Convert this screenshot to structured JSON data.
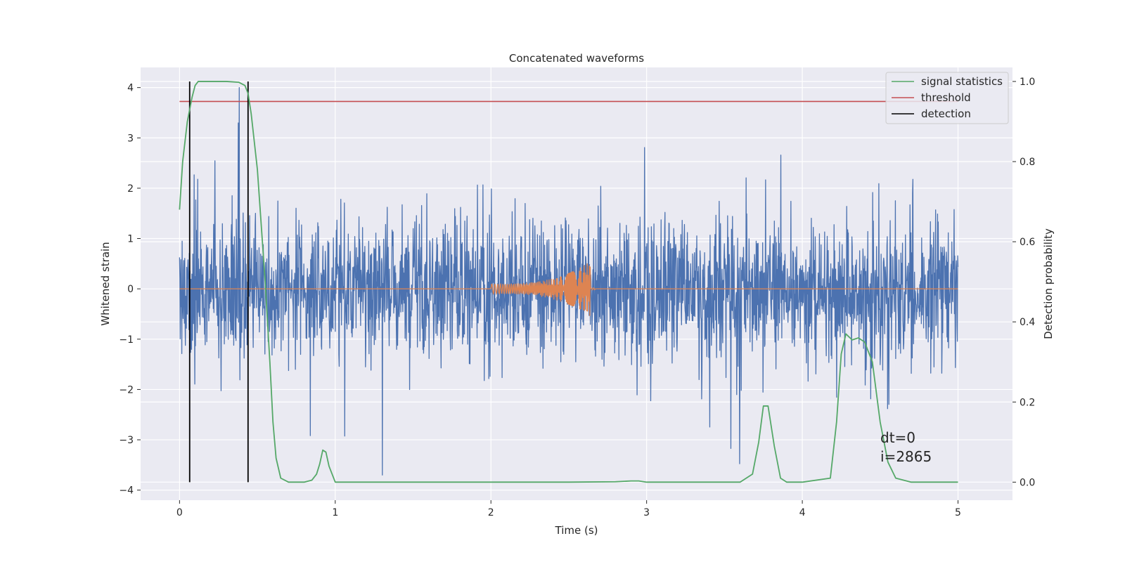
{
  "chart_data": {
    "type": "line",
    "title": "Concatenated waveforms",
    "xlabel": "Time (s)",
    "ylabel_left": "Whitened strain",
    "ylabel_right": "Detection probability",
    "xlim": [
      -0.25,
      5.35
    ],
    "ylim_left": [
      -4.2,
      4.4
    ],
    "ylim_right": [
      -0.045,
      1.035
    ],
    "x_ticks": [
      "0",
      "1",
      "2",
      "3",
      "4",
      "5"
    ],
    "y_left_ticks": [
      "−4",
      "−3",
      "−2",
      "−1",
      "0",
      "1",
      "2",
      "3",
      "4"
    ],
    "y_right_ticks": [
      "0.0",
      "0.2",
      "0.4",
      "0.6",
      "0.8",
      "1.0"
    ],
    "grid": true,
    "legend_placement": "upper right",
    "legend": [
      "signal statistics",
      "threshold",
      "detection"
    ],
    "annotations": [
      "dt=0",
      "i=2865"
    ],
    "series": [
      {
        "name": "",
        "kind": "noise",
        "axis": "left",
        "x_range": [
          0,
          5
        ],
        "typical_amplitude": 0.7,
        "max": 4.0,
        "min": -3.7,
        "color": "#4c72b0"
      },
      {
        "name": "",
        "kind": "chirp",
        "axis": "left",
        "x_range": [
          0,
          5
        ],
        "chirp_start": 2.0,
        "chirp_end": 2.64,
        "amplitude_start": 0.1,
        "amplitude_peak": 0.55,
        "color": "#dd8452"
      },
      {
        "name": "signal statistics",
        "axis": "right",
        "color": "#55a868",
        "x": [
          0.0,
          0.02,
          0.05,
          0.08,
          0.1,
          0.12,
          0.15,
          0.2,
          0.3,
          0.38,
          0.42,
          0.44,
          0.46,
          0.5,
          0.55,
          0.58,
          0.6,
          0.62,
          0.65,
          0.7,
          0.8,
          0.85,
          0.88,
          0.9,
          0.92,
          0.94,
          0.96,
          1.0,
          1.2,
          2.0,
          2.5,
          2.8,
          2.9,
          2.95,
          3.0,
          3.5,
          3.6,
          3.68,
          3.72,
          3.75,
          3.78,
          3.82,
          3.86,
          3.9,
          4.0,
          4.18,
          4.22,
          4.25,
          4.28,
          4.32,
          4.36,
          4.4,
          4.45,
          4.5,
          4.55,
          4.6,
          4.7,
          5.0
        ],
        "y": [
          0.68,
          0.8,
          0.9,
          0.96,
          0.99,
          1.0,
          1.0,
          1.0,
          1.0,
          0.998,
          0.99,
          0.97,
          0.92,
          0.78,
          0.5,
          0.3,
          0.15,
          0.06,
          0.01,
          0.0,
          0.0,
          0.005,
          0.02,
          0.045,
          0.08,
          0.075,
          0.04,
          0.0,
          0.0,
          0.0,
          0.0,
          0.001,
          0.003,
          0.003,
          0.0,
          0.0,
          0.0,
          0.02,
          0.1,
          0.19,
          0.19,
          0.09,
          0.01,
          0.0,
          0.0,
          0.01,
          0.15,
          0.32,
          0.37,
          0.355,
          0.36,
          0.35,
          0.3,
          0.15,
          0.05,
          0.01,
          0.0,
          0.0
        ]
      },
      {
        "name": "threshold",
        "axis": "right",
        "color": "#c44e52",
        "x": [
          0,
          5
        ],
        "y": [
          0.95,
          0.95
        ]
      },
      {
        "name": "detection",
        "axis": "right",
        "color": "#000000",
        "x_positions": [
          0.065,
          0.44
        ],
        "y_range": [
          0.0,
          1.0
        ]
      }
    ]
  }
}
